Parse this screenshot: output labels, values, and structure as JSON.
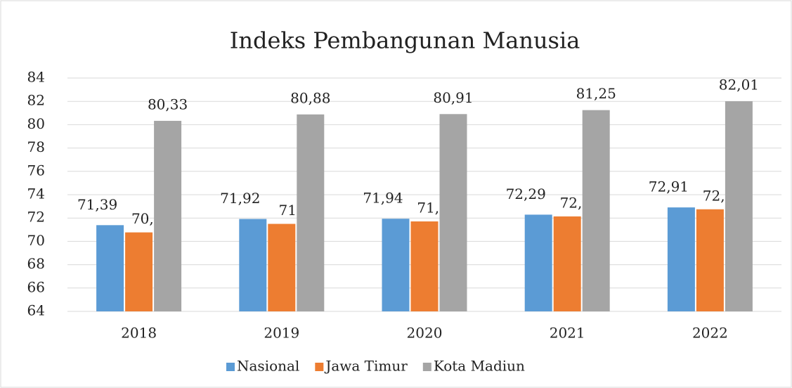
{
  "chart_data": {
    "type": "bar",
    "title": "Indeks Pembangunan Manusia",
    "categories": [
      "2018",
      "2019",
      "2020",
      "2021",
      "2022"
    ],
    "series": [
      {
        "name": "Nasional",
        "color": "#5b9bd5",
        "values": [
          71.39,
          71.92,
          71.94,
          72.29,
          72.91
        ],
        "value_labels": [
          "71,39",
          "71,92",
          "71,94",
          "72,29",
          "72,91"
        ]
      },
      {
        "name": "Jawa Timur",
        "color": "#ed7d31",
        "values": [
          70.77,
          71.5,
          71.71,
          72.14,
          72.75
        ],
        "value_labels": [
          "70,77",
          "71,5",
          "71,71",
          "72,14",
          "72,75"
        ]
      },
      {
        "name": "Kota Madiun",
        "color": "#a5a5a5",
        "values": [
          80.33,
          80.88,
          80.91,
          81.25,
          82.01
        ],
        "value_labels": [
          "80,33",
          "80,88",
          "80,91",
          "81,25",
          "82,01"
        ]
      }
    ],
    "ylim": [
      64,
      84
    ],
    "yticks": [
      64,
      66,
      68,
      70,
      72,
      74,
      76,
      78,
      80,
      82,
      84
    ],
    "grid": true,
    "legend": "bottom"
  }
}
